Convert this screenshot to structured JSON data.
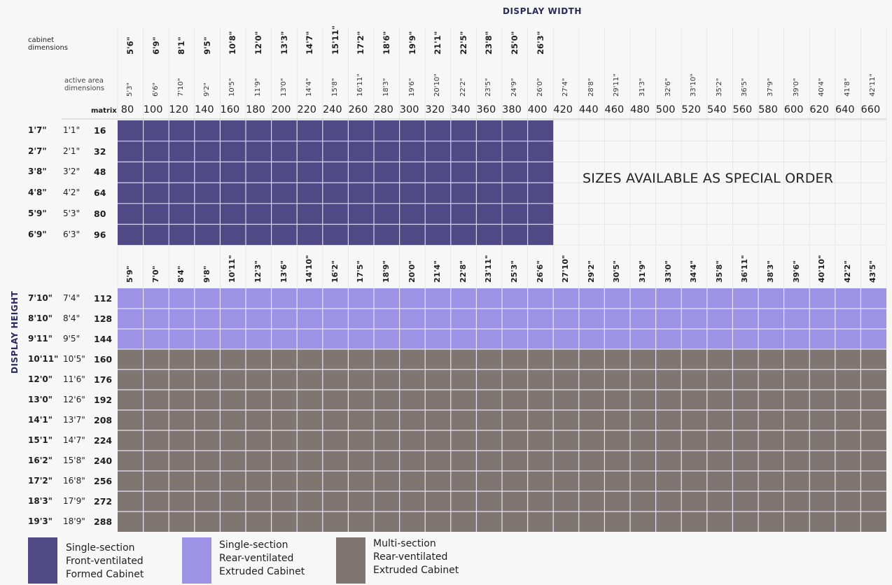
{
  "title": "DISPLAY WIDTH",
  "side_title": "DISPLAY HEIGHT",
  "labels": {
    "cabinet_dimensions": [
      "cabinet",
      "dimensions"
    ],
    "active_dimensions": [
      "active area",
      "dimensions"
    ],
    "matrix": "matrix"
  },
  "special_order": "SIZES AVAILABLE AS SPECIAL ORDER",
  "colors": {
    "formed": "#4f4a86",
    "rear": "#9c93e6",
    "multi": "#7f7672",
    "grid_line": "#dcdcdc"
  },
  "matrix_cols": [
    "80",
    "100",
    "120",
    "140",
    "160",
    "180",
    "200",
    "220",
    "240",
    "260",
    "280",
    "300",
    "320",
    "340",
    "360",
    "380",
    "400",
    "420",
    "440",
    "460",
    "480",
    "500",
    "520",
    "540",
    "560",
    "580",
    "600",
    "620",
    "640",
    "660"
  ],
  "cabinet_widths_top": [
    "5'6\"",
    "6'9\"",
    "8'1\"",
    "9'5\"",
    "10'8\"",
    "12'0\"",
    "13'3\"",
    "14'7\"",
    "15'11\"",
    "17'2\"",
    "18'6\"",
    "19'9\"",
    "21'1\"",
    "22'5\"",
    "23'8\"",
    "25'0\"",
    "26'3\""
  ],
  "active_widths": [
    "5'3\"",
    "6'6\"",
    "7'10\"",
    "9'2\"",
    "10'5\"",
    "11'9\"",
    "13'0\"",
    "14'4\"",
    "15'8\"",
    "16'11\"",
    "18'3\"",
    "19'6\"",
    "20'10\"",
    "22'2\"",
    "23'5\"",
    "24'9\"",
    "26'0\"",
    "27'4\"",
    "28'8\"",
    "29'11\"",
    "31'3\"",
    "32'6\"",
    "33'10\"",
    "35'2\"",
    "36'5\"",
    "37'9\"",
    "39'0\"",
    "40'4\"",
    "41'8\"",
    "42'11\""
  ],
  "cabinet_widths_mid": [
    "5'9\"",
    "7'0\"",
    "8'4\"",
    "9'8\"",
    "10'11\"",
    "12'3\"",
    "13'6\"",
    "14'10\"",
    "16'2\"",
    "17'5\"",
    "18'9\"",
    "20'0\"",
    "21'4\"",
    "22'8\"",
    "23'11\"",
    "25'3\"",
    "26'6\"",
    "27'10\"",
    "29'2\"",
    "30'5\"",
    "31'9\"",
    "33'0\"",
    "34'4\"",
    "35'8\"",
    "36'11\"",
    "38'3\"",
    "39'6\"",
    "40'10\"",
    "42'2\"",
    "43'5\""
  ],
  "rows_top": [
    {
      "cab": "1'7\"",
      "act": "1'1\"",
      "matrix": "16"
    },
    {
      "cab": "2'7\"",
      "act": "2'1\"",
      "matrix": "32"
    },
    {
      "cab": "3'8\"",
      "act": "3'2\"",
      "matrix": "48"
    },
    {
      "cab": "4'8\"",
      "act": "4'2\"",
      "matrix": "64"
    },
    {
      "cab": "5'9\"",
      "act": "5'3\"",
      "matrix": "80"
    },
    {
      "cab": "6'9\"",
      "act": "6'3\"",
      "matrix": "96"
    }
  ],
  "rows_bottom": [
    {
      "cab": "7'10\"",
      "act": "7'4\"",
      "matrix": "112"
    },
    {
      "cab": "8'10\"",
      "act": "8'4\"",
      "matrix": "128"
    },
    {
      "cab": "9'11\"",
      "act": "9'5\"",
      "matrix": "144"
    },
    {
      "cab": "10'11\"",
      "act": "10'5\"",
      "matrix": "160"
    },
    {
      "cab": "12'0\"",
      "act": "11'6\"",
      "matrix": "176"
    },
    {
      "cab": "13'0\"",
      "act": "12'6\"",
      "matrix": "192"
    },
    {
      "cab": "14'1\"",
      "act": "13'7\"",
      "matrix": "208"
    },
    {
      "cab": "15'1\"",
      "act": "14'7\"",
      "matrix": "224"
    },
    {
      "cab": "16'2\"",
      "act": "15'8\"",
      "matrix": "240"
    },
    {
      "cab": "17'2\"",
      "act": "16'8\"",
      "matrix": "256"
    },
    {
      "cab": "18'3\"",
      "act": "17'9\"",
      "matrix": "272"
    },
    {
      "cab": "19'3\"",
      "act": "18'9\"",
      "matrix": "288"
    }
  ],
  "legend": [
    {
      "lines": [
        "Single-section",
        "Front-ventilated",
        "Formed Cabinet"
      ],
      "color": "#4f4a86"
    },
    {
      "lines": [
        "Single-section",
        "Rear-ventilated",
        "Extruded Cabinet"
      ],
      "color": "#9c93e6"
    },
    {
      "lines": [
        "Multi-section",
        "Rear-ventilated",
        "Extruded Cabinet"
      ],
      "color": "#7f7672"
    }
  ]
}
